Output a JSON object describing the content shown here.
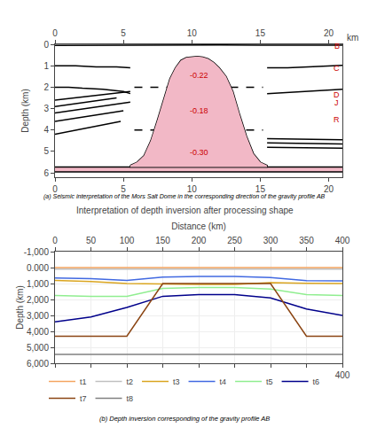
{
  "chart_data": [
    {
      "type": "line",
      "caption": "(a) Seismic interpretation of the Mors Salt Dome in the corresponding direction of the gravity profile AB",
      "xlabel": "km",
      "ylabel": "Depth (km)",
      "xlim": [
        0,
        21
      ],
      "ylim": [
        6.2,
        0
      ],
      "xticks": [
        0,
        5,
        10,
        15,
        20
      ],
      "yticks": [
        0,
        1,
        2,
        3,
        4,
        5,
        6
      ],
      "grid": false,
      "series": [
        {
          "type": "area",
          "color": "#F2B8C6",
          "x": [
            5.5,
            6.0,
            6.5,
            7.0,
            7.5,
            8.0,
            8.4,
            8.8,
            9.2,
            9.6,
            10.0,
            10.4,
            10.8,
            11.2,
            11.6,
            12.0,
            12.5,
            13.0,
            13.5,
            14.0,
            14.5,
            15.0,
            15.5,
            15.5,
            5.5
          ],
          "values": [
            5.65,
            5.5,
            5.2,
            4.5,
            3.5,
            2.4,
            1.6,
            1.1,
            0.75,
            0.62,
            0.58,
            0.57,
            0.6,
            0.68,
            0.85,
            1.1,
            1.5,
            2.2,
            3.3,
            4.3,
            5.1,
            5.5,
            5.65,
            5.72,
            5.72
          ]
        },
        {
          "type": "area",
          "color": "#F2B8C6",
          "x": [
            0,
            21,
            21,
            0
          ],
          "values": [
            5.72,
            5.72,
            5.95,
            5.95
          ]
        },
        {
          "type": "line",
          "color": "#000000",
          "x": [
            5.5,
            6.0,
            6.5,
            7.0,
            7.5,
            8.0,
            8.4,
            8.8,
            9.2,
            9.6,
            10.0,
            10.4,
            10.8,
            11.2,
            11.6,
            12.0,
            12.5,
            13.0,
            13.5,
            14.0,
            14.5,
            15.0,
            15.5,
            15.5,
            5.5,
            5.5
          ],
          "values": [
            5.65,
            5.5,
            5.2,
            4.5,
            3.5,
            2.4,
            1.6,
            1.1,
            0.75,
            0.62,
            0.58,
            0.57,
            0.6,
            0.68,
            0.85,
            1.1,
            1.5,
            2.2,
            3.3,
            4.3,
            5.1,
            5.5,
            5.65,
            5.72,
            5.72,
            5.65
          ]
        },
        {
          "type": "line",
          "color": "#000000",
          "x": [
            0,
            21
          ],
          "values": [
            5.72,
            5.72
          ]
        },
        {
          "type": "line",
          "color": "#000000",
          "x": [
            0,
            21
          ],
          "values": [
            5.95,
            5.95
          ]
        },
        {
          "type": "line",
          "color": "#000000",
          "x": [
            0,
            3,
            6,
            9,
            10,
            11,
            12,
            15,
            18,
            21
          ],
          "values": [
            0.05,
            0.04,
            0.03,
            0.03,
            0.03,
            0.03,
            0.03,
            0.04,
            0.04,
            0.04
          ]
        },
        {
          "type": "line",
          "color": "#000000",
          "x": [
            0.0,
            1.5,
            3.0,
            4.5,
            5.5
          ],
          "values": [
            1.0,
            1.0,
            1.05,
            1.05,
            1.1
          ]
        },
        {
          "type": "line",
          "color": "#000000",
          "x": [
            15.5,
            17.0,
            18.5,
            20.0,
            21.0
          ],
          "values": [
            1.1,
            1.1,
            1.05,
            1.0,
            0.98
          ]
        },
        {
          "type": "line",
          "color": "#000000",
          "x": [
            0.0,
            1.0,
            2.0,
            3.5,
            5.0,
            5.5
          ],
          "values": [
            2.0,
            2.0,
            2.05,
            2.1,
            2.2,
            2.3
          ]
        },
        {
          "type": "line",
          "color": "#000000",
          "x": [
            15.5,
            17.0,
            18.5,
            20.0,
            21.0
          ],
          "values": [
            2.3,
            2.25,
            2.2,
            2.15,
            2.1
          ]
        },
        {
          "type": "line",
          "color": "#000000",
          "x": [
            0,
            5.5
          ],
          "values": [
            2.6,
            2.2
          ]
        },
        {
          "type": "line",
          "color": "#000000",
          "x": [
            0,
            4.5
          ],
          "values": [
            2.9,
            2.5
          ]
        },
        {
          "type": "line",
          "color": "#000000",
          "x": [
            0,
            5.5
          ],
          "values": [
            3.2,
            2.7
          ]
        },
        {
          "type": "line",
          "color": "#000000",
          "x": [
            0,
            5.0
          ],
          "values": [
            3.6,
            3.1
          ]
        },
        {
          "type": "line",
          "color": "#000000",
          "x": [
            0,
            4.8
          ],
          "values": [
            4.2,
            3.6
          ]
        },
        {
          "type": "line",
          "color": "#000000",
          "x": [
            15.5,
            21
          ],
          "values": [
            4.4,
            4.45
          ]
        },
        {
          "type": "line",
          "color": "#000000",
          "x": [
            15.5,
            21
          ],
          "values": [
            4.6,
            4.65
          ]
        },
        {
          "type": "line",
          "color": "#000000",
          "x": [
            15.5,
            21
          ],
          "values": [
            4.8,
            4.85
          ]
        },
        {
          "type": "line",
          "color": "#000000",
          "line_style": "dashed",
          "x": [
            5.8,
            15.2
          ],
          "values": [
            2.0,
            2.0
          ]
        },
        {
          "type": "line",
          "color": "#000000",
          "line_style": "dashed",
          "x": [
            5.8,
            15.2
          ],
          "values": [
            4.0,
            4.0
          ]
        }
      ],
      "annotations": [
        {
          "text": "-0.22",
          "x": 10.5,
          "y": 1.45,
          "color": "#CC0000"
        },
        {
          "text": "-0.18",
          "x": 10.5,
          "y": 3.1,
          "color": "#CC0000"
        },
        {
          "text": "-0.30",
          "x": 10.5,
          "y": 5.05,
          "color": "#CC0000"
        },
        {
          "text": "B",
          "x": 20.6,
          "y": 0.08,
          "color": "#CC0000"
        },
        {
          "text": "C",
          "x": 20.6,
          "y": 1.1,
          "color": "#CC0000"
        },
        {
          "text": "D",
          "x": 20.6,
          "y": 2.35,
          "color": "#CC0000"
        },
        {
          "text": "J",
          "x": 20.6,
          "y": 3.0,
          "color": "#CC0000"
        },
        {
          "text": "R",
          "x": 20.6,
          "y": 3.22,
          "color": "#CC0000"
        }
      ]
    },
    {
      "type": "line",
      "title": "Interpretation of depth inversion after processing shape",
      "xlabel": "Distance (km)",
      "ylabel": "Depth (km)",
      "caption": "(b) Depth inversion corresponding of the gravity profile AB",
      "x": [
        0,
        50,
        100,
        150,
        200,
        250,
        300,
        350,
        400
      ],
      "xlim": [
        0,
        400
      ],
      "ylim": [
        6000,
        -1000
      ],
      "xticks": [
        0,
        50,
        100,
        150,
        200,
        250,
        300,
        350,
        400
      ],
      "yticks": [
        {
          "value": -1000,
          "label": "-1,000"
        },
        {
          "value": 0,
          "label": "0.000"
        },
        {
          "value": 1000,
          "label": "1,000"
        },
        {
          "value": 2000,
          "label": "2,000"
        },
        {
          "value": 3000,
          "label": "3,000"
        },
        {
          "value": 4000,
          "label": "4,000"
        },
        {
          "value": 5000,
          "label": "5,000"
        },
        {
          "value": 6000,
          "label": "6,000"
        }
      ],
      "grid": true,
      "legend": "bottom",
      "series": [
        {
          "name": "t1",
          "color": "#F4A460",
          "values": [
            0,
            0,
            0,
            0,
            0,
            0,
            0,
            0,
            0
          ]
        },
        {
          "name": "t2",
          "color": "#C0C0C0",
          "values": [
            100,
            100,
            100,
            100,
            100,
            100,
            100,
            100,
            100
          ]
        },
        {
          "name": "t3",
          "color": "#DAA520",
          "values": [
            800,
            870,
            1000,
            1050,
            1060,
            1060,
            950,
            980,
            1000
          ]
        },
        {
          "name": "t4",
          "color": "#4169E1",
          "values": [
            650,
            700,
            800,
            600,
            560,
            560,
            620,
            820,
            830
          ]
        },
        {
          "name": "t5",
          "color": "#90EE90",
          "values": [
            1750,
            1800,
            1800,
            1300,
            1250,
            1250,
            1350,
            1700,
            1750
          ]
        },
        {
          "name": "t6",
          "color": "#00008B",
          "values": [
            3400,
            3100,
            2500,
            1800,
            1700,
            1700,
            1900,
            2600,
            3000
          ]
        },
        {
          "name": "t7",
          "color": "#8B4513",
          "values": [
            4300,
            4300,
            4300,
            1000,
            1000,
            1000,
            1000,
            4300,
            4300
          ]
        },
        {
          "name": "t8",
          "color": "#808080",
          "values": [
            5450,
            5450,
            5450,
            5450,
            5450,
            5450,
            5450,
            5450,
            5450
          ]
        }
      ]
    }
  ]
}
